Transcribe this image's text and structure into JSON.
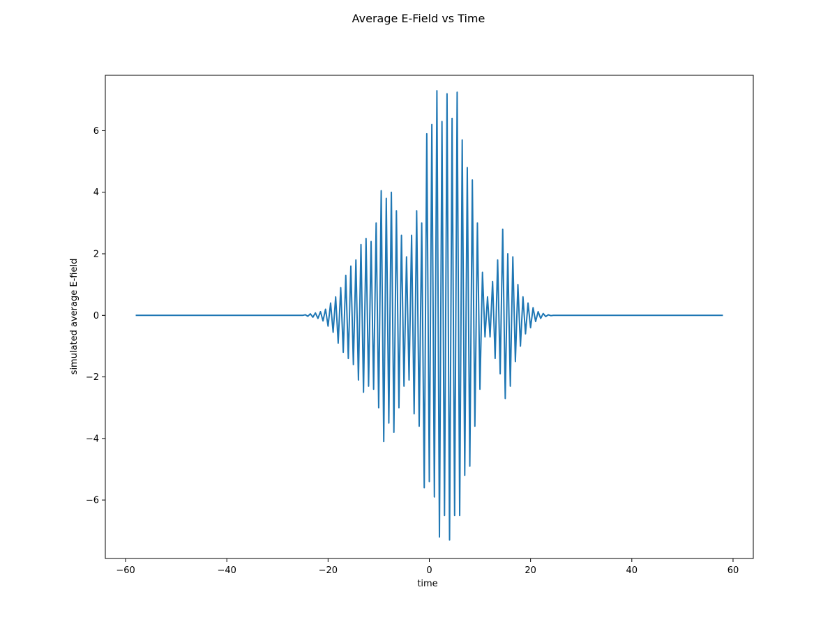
{
  "chart_data": {
    "type": "line",
    "title": "Average E-Field vs Time",
    "xlabel": "time",
    "ylabel": "simulated average E-field",
    "xlim": [
      -64.0,
      64.0
    ],
    "ylim": [
      -7.9,
      7.8
    ],
    "x_ticks": [
      -60,
      -40,
      -20,
      0,
      20,
      40,
      60
    ],
    "y_ticks": [
      -6,
      -4,
      -2,
      0,
      2,
      4,
      6
    ],
    "x_tick_labels": [
      "−60",
      "−40",
      "−20",
      "0",
      "20",
      "40",
      "60"
    ],
    "y_tick_labels": [
      "−6",
      "−4",
      "−2",
      "0",
      "2",
      "4",
      "6"
    ],
    "grid": false,
    "series": [
      {
        "color": "#1f77b4",
        "x": [
          -58.0,
          -25.0,
          -24.5,
          -24.0,
          -23.5,
          -23.0,
          -22.5,
          -22.0,
          -21.5,
          -21.0,
          -20.5,
          -20.0,
          -19.5,
          -19.0,
          -18.5,
          -18.0,
          -17.5,
          -17.0,
          -16.5,
          -16.0,
          -15.5,
          -15.0,
          -14.5,
          -14.0,
          -13.5,
          -13.0,
          -12.5,
          -12.0,
          -11.5,
          -11.0,
          -10.5,
          -10.0,
          -9.5,
          -9.0,
          -8.5,
          -8.0,
          -7.5,
          -7.0,
          -6.5,
          -6.0,
          -5.5,
          -5.0,
          -4.5,
          -4.0,
          -3.5,
          -3.0,
          -2.5,
          -2.0,
          -1.5,
          -1.0,
          -0.5,
          0.0,
          0.5,
          1.0,
          1.5,
          2.0,
          2.5,
          3.0,
          3.5,
          4.0,
          4.5,
          5.0,
          5.5,
          6.0,
          6.5,
          7.0,
          7.5,
          8.0,
          8.5,
          9.0,
          9.5,
          10.0,
          10.5,
          11.0,
          11.5,
          12.0,
          12.5,
          13.0,
          13.5,
          14.0,
          14.5,
          15.0,
          15.5,
          16.0,
          16.5,
          17.0,
          17.5,
          18.0,
          18.5,
          19.0,
          19.5,
          20.0,
          20.5,
          21.0,
          21.5,
          22.0,
          22.5,
          23.0,
          23.5,
          24.0,
          24.5,
          25.0,
          25.5,
          26.0,
          26.5,
          27.0,
          27.5,
          28.0,
          58.0
        ],
        "y": [
          0,
          0,
          0.02,
          -0.03,
          0.05,
          -0.06,
          0.08,
          -0.1,
          0.12,
          -0.18,
          0.2,
          -0.35,
          0.4,
          -0.55,
          0.6,
          -0.9,
          0.9,
          -1.2,
          1.3,
          -1.4,
          1.6,
          -1.6,
          1.8,
          -2.1,
          2.3,
          -2.5,
          2.5,
          -2.3,
          2.4,
          -2.4,
          3.0,
          -3.0,
          4.05,
          -4.1,
          3.8,
          -3.5,
          4.0,
          -3.8,
          3.4,
          -3.0,
          2.6,
          -2.3,
          1.9,
          -2.1,
          2.6,
          -3.2,
          3.4,
          -3.6,
          3.0,
          -5.6,
          5.9,
          -5.4,
          6.2,
          -5.9,
          7.3,
          -7.2,
          6.3,
          -6.5,
          7.2,
          -7.3,
          6.4,
          -6.5,
          7.25,
          -6.5,
          5.7,
          -5.2,
          4.8,
          -4.9,
          4.4,
          -3.6,
          3.0,
          -2.4,
          1.4,
          -0.7,
          0.6,
          -0.7,
          1.1,
          -1.4,
          1.8,
          -1.9,
          2.8,
          -2.7,
          2.0,
          -2.3,
          1.9,
          -1.5,
          1.0,
          -1.0,
          0.6,
          -0.6,
          0.4,
          -0.4,
          0.25,
          -0.2,
          0.12,
          -0.1,
          0.06,
          -0.04,
          0.02,
          -0.01,
          0.0,
          0.0,
          0.0,
          0.0,
          0.0,
          0.0,
          0.0,
          0.0,
          0.0
        ]
      }
    ]
  }
}
